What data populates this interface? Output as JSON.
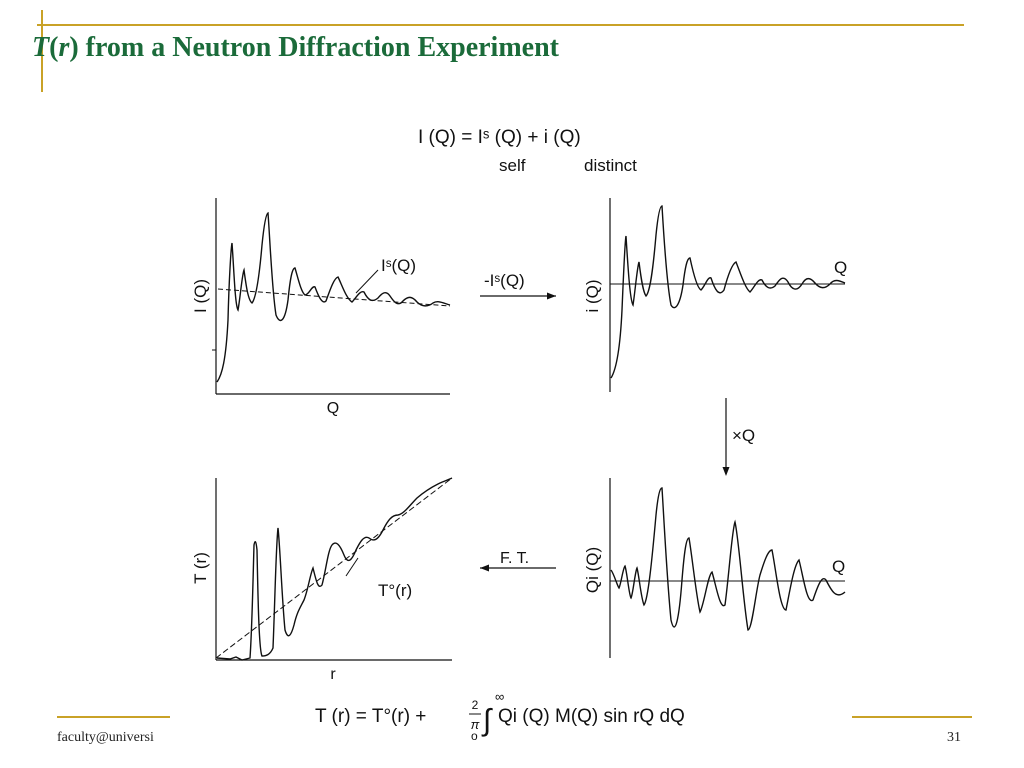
{
  "slide": {
    "title_italic_T": "T",
    "title_paren_open": "(",
    "title_italic_r": "r",
    "title_rest": ") from a Neutron Diffraction Experiment",
    "footer_left": "faculty@universi",
    "page_number": "31"
  },
  "diagram": {
    "top_equation": "I (Q)  =  Iˢ (Q)  +  i (Q)",
    "self_label": "self",
    "distinct_label": "distinct",
    "panel_tl": {
      "ylabel": "I (Q)",
      "xlabel": "Q",
      "annotation": "Iˢ(Q)"
    },
    "panel_tr": {
      "ylabel": "i (Q)",
      "axis_label": "Q"
    },
    "panel_br": {
      "ylabel": "Qi (Q)",
      "axis_label": "Q"
    },
    "panel_bl": {
      "ylabel": "T (r)",
      "xlabel": "r",
      "annotation": "T°(r)"
    },
    "arrow_top": "-Iˢ(Q)",
    "arrow_down": "×Q",
    "arrow_bottom": "F. T.",
    "bottom_equation": "T (r) = T°(r) + ",
    "frac_num": "2",
    "frac_den": "π",
    "int_upper": "∞",
    "int_lower": "o",
    "integrand": "Qi (Q)  M(Q)  sin  rQ  dQ"
  },
  "colors": {
    "accent": "#c9a227",
    "title": "#1b6b3a",
    "ink": "#111111"
  }
}
